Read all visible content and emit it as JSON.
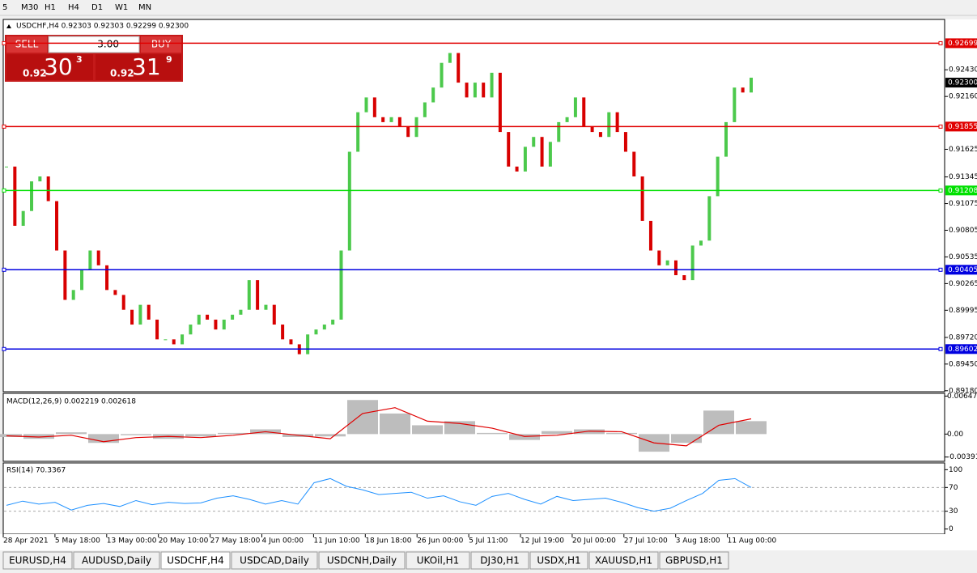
{
  "toolbar": {
    "timeframes": [
      "5",
      "M30",
      "H1",
      "H4",
      "D1",
      "W1",
      "MN"
    ]
  },
  "chart": {
    "symbol_info": "USDCHF,H4  0.92303 0.92303 0.92299 0.92300",
    "ylim": [
      0.8917,
      0.9294
    ],
    "yticks": [
      {
        "value": 0.9243,
        "label": "0.92430"
      },
      {
        "value": 0.9216,
        "label": "0.92160"
      },
      {
        "value": 0.91625,
        "label": "0.91625"
      },
      {
        "value": 0.91345,
        "label": "0.91345"
      },
      {
        "value": 0.91075,
        "label": "0.91075"
      },
      {
        "value": 0.90805,
        "label": "0.90805"
      },
      {
        "value": 0.90535,
        "label": "0.90535"
      },
      {
        "value": 0.90265,
        "label": "0.90265"
      },
      {
        "value": 0.89995,
        "label": "0.89995"
      },
      {
        "value": 0.8972,
        "label": "0.89720"
      },
      {
        "value": 0.8945,
        "label": "0.89450"
      },
      {
        "value": 0.8918,
        "label": "0.89180"
      }
    ],
    "levels": [
      {
        "value": 0.92699,
        "label": "0.92699",
        "color": "#e00000"
      },
      {
        "value": 0.91855,
        "label": "0.91855",
        "color": "#e00000"
      },
      {
        "value": 0.91208,
        "label": "0.91208",
        "color": "#00e000"
      },
      {
        "value": 0.90405,
        "label": "0.90405",
        "color": "#0000e0"
      },
      {
        "value": 0.89602,
        "label": "0.89602",
        "color": "#0000e0"
      }
    ],
    "current_price": {
      "value": 0.923,
      "label": "0.92300"
    },
    "up_color": "#4cc94c",
    "down_color": "#d80000",
    "close": [
      0.9145,
      0.9085,
      0.91,
      0.913,
      0.9135,
      0.911,
      0.906,
      0.901,
      0.902,
      0.904,
      0.906,
      0.9045,
      0.902,
      0.9015,
      0.9,
      0.8985,
      0.9005,
      0.899,
      0.897,
      0.897,
      0.8965,
      0.8975,
      0.8985,
      0.8995,
      0.899,
      0.898,
      0.899,
      0.8995,
      0.9,
      0.903,
      0.9,
      0.9005,
      0.8985,
      0.897,
      0.8965,
      0.8955,
      0.8975,
      0.898,
      0.8985,
      0.899,
      0.906,
      0.916,
      0.92,
      0.9215,
      0.9195,
      0.919,
      0.9195,
      0.9185,
      0.9175,
      0.9195,
      0.921,
      0.9225,
      0.925,
      0.926,
      0.923,
      0.9215,
      0.923,
      0.9215,
      0.924,
      0.918,
      0.9145,
      0.914,
      0.9165,
      0.9175,
      0.9145,
      0.917,
      0.919,
      0.9195,
      0.9215,
      0.9185,
      0.918,
      0.9175,
      0.92,
      0.918,
      0.916,
      0.9135,
      0.909,
      0.906,
      0.9045,
      0.905,
      0.9035,
      0.903,
      0.9065,
      0.907,
      0.9115,
      0.9155,
      0.919,
      0.9225,
      0.922,
      0.9235
    ]
  },
  "trade_panel": {
    "sell": "SELL",
    "volume": "3.00",
    "buy": "BUY",
    "bid_big": "0.92",
    "bid_main": "30",
    "bid_small": "3",
    "ask_big": "0.92",
    "ask_main": "31",
    "ask_small": "9"
  },
  "macd": {
    "label": "MACD(12,26,9) 0.002219 0.002618",
    "ylim": [
      -0.0045,
      0.0068
    ],
    "yticks": [
      0.00647,
      {
        "value": 0,
        "label": "0.00"
      },
      -0.00391
    ],
    "histogram": [
      -0.0005,
      -0.0008,
      0.0003,
      -0.0015,
      -0.0002,
      -0.0008,
      -0.0004,
      0.0002,
      0.0008,
      -0.0005,
      -0.0004,
      0.0058,
      0.0035,
      0.0015,
      0.0022,
      0.0002,
      -0.001,
      0.0005,
      0.0008,
      0.0002,
      -0.003,
      -0.0015,
      0.004,
      0.0022
    ],
    "signal": [
      -0.0003,
      -0.0005,
      -0.0002,
      -0.0013,
      -0.0006,
      -0.0004,
      -0.0006,
      -0.0002,
      0.0004,
      -0.0002,
      -0.0008,
      0.0035,
      0.0045,
      0.0022,
      0.0018,
      0.001,
      -0.0004,
      -0.0002,
      0.0005,
      0.0004,
      -0.0015,
      -0.002,
      0.0015,
      0.0026
    ]
  },
  "rsi": {
    "label": "RSI(14) 70.3367",
    "ylim": [
      -10,
      110
    ],
    "yticks": [
      100,
      70,
      30,
      0
    ],
    "values": [
      40,
      47,
      42,
      45,
      32,
      40,
      43,
      38,
      48,
      41,
      45,
      43,
      44,
      52,
      56,
      50,
      42,
      48,
      42,
      78,
      85,
      72,
      66,
      58,
      60,
      62,
      52,
      56,
      46,
      40,
      55,
      60,
      50,
      42,
      55,
      48,
      50,
      52,
      45,
      36,
      30,
      35,
      48,
      60,
      82,
      85,
      70
    ]
  },
  "time_axis": {
    "labels": [
      "28 Apr 2021",
      "5 May 18:00",
      "13 May 00:00",
      "20 May 10:00",
      "27 May 18:00",
      "4 Jun 00:00",
      "11 Jun 10:00",
      "18 Jun 18:00",
      "26 Jun 00:00",
      "5 Jul 11:00",
      "12 Jul 19:00",
      "20 Jul 00:00",
      "27 Jul 10:00",
      "3 Aug 18:00",
      "11 Aug 00:00"
    ]
  },
  "tabs": [
    "EURUSD,H4",
    "AUDUSD,Daily",
    "USDCHF,H4",
    "USDCAD,Daily",
    "USDCNH,Daily",
    "UKOil,H1",
    "DJ30,H1",
    "USDX,H1",
    "XAUUSD,H1",
    "GBPUSD,H1"
  ],
  "active_tab": 2
}
